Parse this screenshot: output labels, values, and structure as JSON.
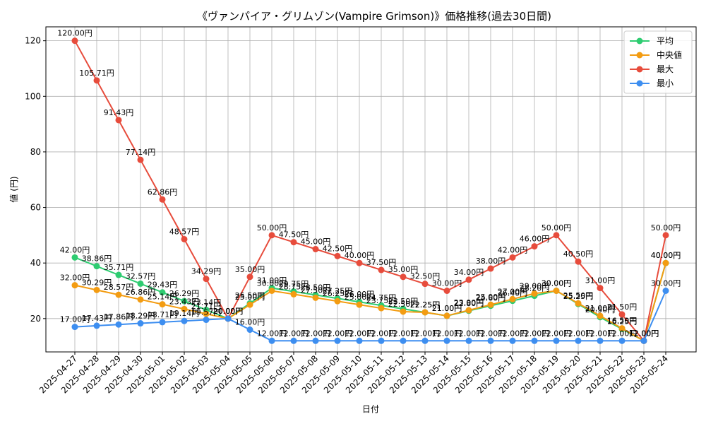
{
  "chart_data": {
    "type": "line",
    "title": "《ヴァンパイア・グリムゾン(Vampire Grimson)》価格推移(過去30日間)",
    "xlabel": "日付",
    "ylabel": "値 (円)",
    "ylim": [
      8,
      125
    ],
    "yticks": [
      20,
      40,
      60,
      80,
      100,
      120
    ],
    "grid": true,
    "legend_position": "top-right",
    "label_suffix": "円",
    "categories": [
      "2025-04-27",
      "2025-04-28",
      "2025-04-29",
      "2025-04-30",
      "2025-05-01",
      "2025-05-02",
      "2025-05-03",
      "2025-05-04",
      "2025-05-05",
      "2025-05-06",
      "2025-05-07",
      "2025-05-08",
      "2025-05-09",
      "2025-05-10",
      "2025-05-11",
      "2025-05-12",
      "2025-05-13",
      "2025-05-14",
      "2025-05-15",
      "2025-05-16",
      "2025-05-17",
      "2025-05-18",
      "2025-05-19",
      "2025-05-20",
      "2025-05-21",
      "2025-05-22",
      "2025-05-23",
      "2025-05-24"
    ],
    "series": [
      {
        "name": "平均",
        "color": "#2ecc71",
        "values": [
          42.0,
          38.86,
          35.71,
          32.57,
          29.43,
          26.29,
          23.14,
          20.0,
          25.5,
          31.0,
          29.75,
          28.5,
          27.25,
          26.0,
          24.75,
          23.5,
          22.25,
          21.0,
          22.8,
          24.6,
          26.4,
          28.2,
          30.0,
          25.25,
          20.5,
          16.25,
          12.0,
          40.0
        ]
      },
      {
        "name": "中央値",
        "color": "#f39c12",
        "values": [
          32.0,
          30.29,
          28.57,
          26.86,
          25.14,
          23.43,
          21.71,
          20.0,
          25.0,
          30.0,
          28.75,
          27.5,
          26.25,
          25.0,
          23.75,
          22.5,
          22.25,
          21.0,
          23.0,
          25.0,
          27.0,
          29.0,
          30.0,
          25.5,
          21.0,
          16.5,
          12.0,
          40.0
        ]
      },
      {
        "name": "最大",
        "color": "#e74c3c",
        "values": [
          120.0,
          105.71,
          91.43,
          77.14,
          62.86,
          48.57,
          34.29,
          20.0,
          35.0,
          50.0,
          47.5,
          45.0,
          42.5,
          40.0,
          37.5,
          35.0,
          32.5,
          30.0,
          34.0,
          38.0,
          42.0,
          46.0,
          50.0,
          40.5,
          31.0,
          21.5,
          12.0,
          50.0
        ]
      },
      {
        "name": "最小",
        "color": "#3d8ef0",
        "values": [
          17.0,
          17.43,
          17.86,
          18.29,
          18.71,
          19.14,
          19.57,
          20.0,
          16.0,
          12.0,
          12.0,
          12.0,
          12.0,
          12.0,
          12.0,
          12.0,
          12.0,
          12.0,
          12.0,
          12.0,
          12.0,
          12.0,
          12.0,
          12.0,
          12.0,
          12.0,
          12.0,
          30.0
        ]
      }
    ]
  }
}
